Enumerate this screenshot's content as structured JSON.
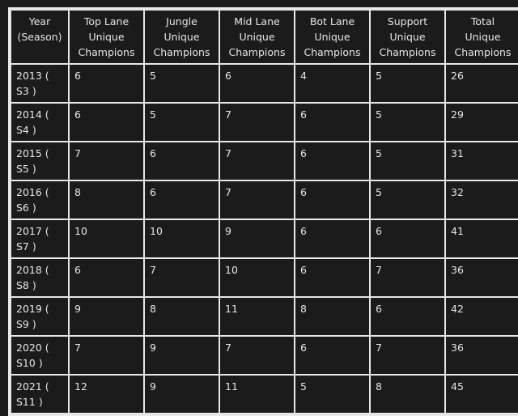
{
  "table": {
    "headers": [
      [
        "Year",
        "(Season)"
      ],
      [
        "Top Lane",
        "Unique",
        "Champions"
      ],
      [
        "Jungle",
        "Unique",
        "Champions"
      ],
      [
        "Mid Lane",
        "Unique",
        "Champions"
      ],
      [
        "Bot Lane",
        "Unique",
        "Champions"
      ],
      [
        "Support",
        "Unique",
        "Champions"
      ],
      [
        "Total",
        "Unique",
        "Champions"
      ]
    ],
    "rows": [
      [
        [
          "2013 (",
          "S3 )"
        ],
        "6",
        "5",
        "6",
        "4",
        "5",
        "26"
      ],
      [
        [
          "2014 (",
          "S4 )"
        ],
        "6",
        "5",
        "7",
        "6",
        "5",
        "29"
      ],
      [
        [
          "2015 (",
          "S5 )"
        ],
        "7",
        "6",
        "7",
        "6",
        "5",
        "31"
      ],
      [
        [
          "2016 (",
          "S6 )"
        ],
        "8",
        "6",
        "7",
        "6",
        "5",
        "32"
      ],
      [
        [
          "2017 (",
          "S7 )"
        ],
        "10",
        "10",
        "9",
        "6",
        "6",
        "41"
      ],
      [
        [
          "2018 (",
          "S8 )"
        ],
        "6",
        "7",
        "10",
        "6",
        "7",
        "36"
      ],
      [
        [
          "2019 (",
          "S9 )"
        ],
        "9",
        "8",
        "11",
        "8",
        "6",
        "42"
      ],
      [
        [
          "2020 (",
          "S10 )"
        ],
        "7",
        "9",
        "7",
        "6",
        "7",
        "36"
      ],
      [
        [
          "2021 (",
          "S11 )"
        ],
        "12",
        "9",
        "11",
        "5",
        "8",
        "45"
      ]
    ]
  }
}
